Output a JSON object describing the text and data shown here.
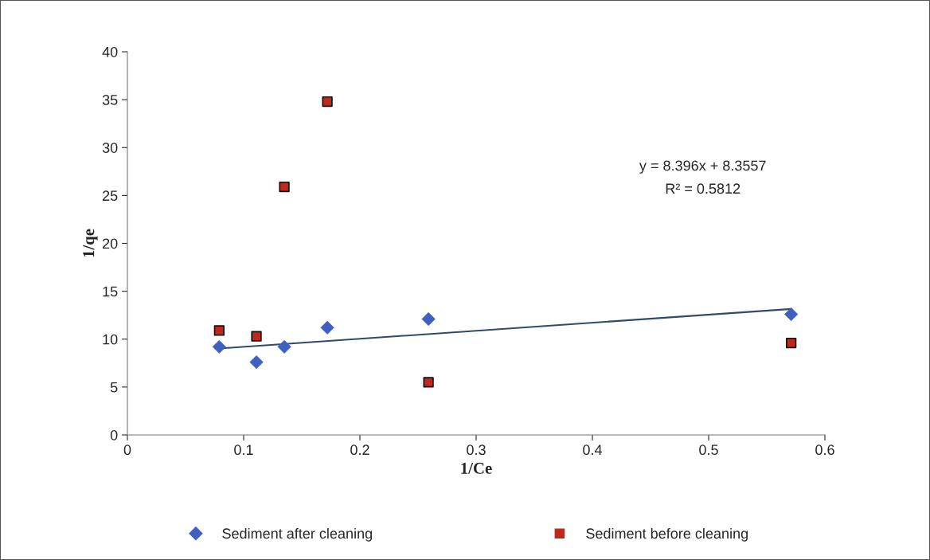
{
  "chart_data": {
    "type": "scatter",
    "xlabel": "1/Ce",
    "ylabel": "1/qe",
    "xlim": [
      0,
      0.6
    ],
    "xticks": [
      0,
      0.1,
      0.2,
      0.3,
      0.4,
      0.5,
      0.6
    ],
    "ylim": [
      0,
      40
    ],
    "yticks": [
      0,
      5,
      10,
      15,
      20,
      25,
      30,
      35,
      40
    ],
    "grid": false,
    "legend": "bottom",
    "series": [
      {
        "name": "Sediment after cleaning",
        "color": "#4060c0",
        "marker": "diamond",
        "x": [
          0.079,
          0.111,
          0.135,
          0.172,
          0.259,
          0.571
        ],
        "values": [
          9.2,
          7.6,
          9.2,
          11.2,
          12.1,
          12.6
        ]
      },
      {
        "name": "Sediment before cleaning",
        "color": "#c0281c",
        "marker": "square",
        "x": [
          0.079,
          0.111,
          0.135,
          0.172,
          0.259,
          0.571
        ],
        "values": [
          10.9,
          10.3,
          25.9,
          34.8,
          5.5,
          9.6
        ]
      },
      {
        "type": "line",
        "color": "#2f4a6a",
        "marker": "none",
        "x": [
          0.079,
          0.571
        ],
        "values": [
          9.02,
          13.15
        ]
      }
    ],
    "annotations": [
      "y = 8.396x + 8.3557",
      "R² = 0.5812"
    ]
  }
}
